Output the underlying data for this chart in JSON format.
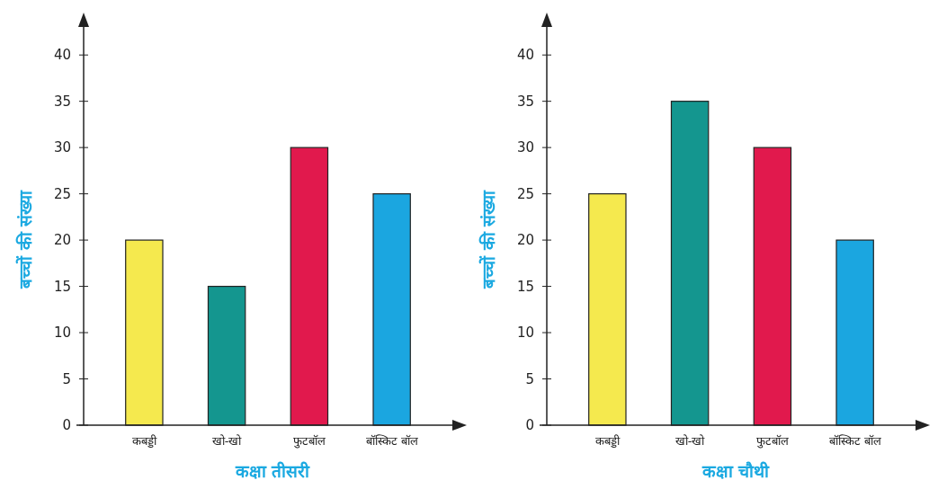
{
  "chart_data": [
    {
      "type": "bar",
      "categories": [
        "कबड्डी",
        "खो-खो",
        "फुटबॉल",
        "बॉस्किट बॉल"
      ],
      "values": [
        20,
        15,
        30,
        25
      ],
      "colors": [
        "#f5e94e",
        "#14968f",
        "#e1194d",
        "#1ba6e0"
      ],
      "xlabel": "कक्षा तीसरी",
      "ylabel": "बच्चों की संख्या",
      "ylim": [
        0,
        44
      ],
      "yticks": [
        0,
        5,
        10,
        15,
        20,
        25,
        30,
        35,
        40
      ],
      "grid": false
    },
    {
      "type": "bar",
      "categories": [
        "कबड्डी",
        "खो-खो",
        "फुटबॉल",
        "बॉस्किट बॉल"
      ],
      "values": [
        25,
        35,
        30,
        20
      ],
      "colors": [
        "#f5e94e",
        "#14968f",
        "#e1194d",
        "#1ba6e0"
      ],
      "xlabel": "कक्षा चौथी",
      "ylabel": "बच्चों की संख्या",
      "ylim": [
        0,
        44
      ],
      "yticks": [
        0,
        5,
        10,
        15,
        20,
        25,
        30,
        35,
        40
      ],
      "grid": false
    }
  ]
}
